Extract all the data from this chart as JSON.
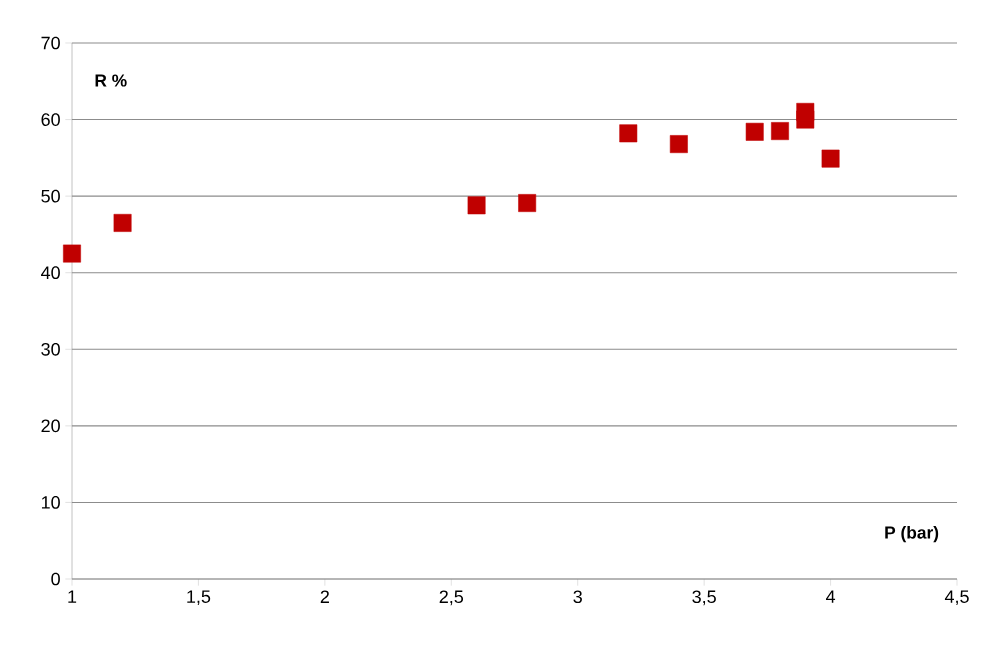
{
  "chart_data": {
    "type": "scatter",
    "xlabel": "P (bar)",
    "ylabel": "R %",
    "x": [
      1,
      1.2,
      2.6,
      2.8,
      3.2,
      3.4,
      3.7,
      3.8,
      3.9,
      3.9,
      4.0
    ],
    "values": [
      42.5,
      46.5,
      48.8,
      49.1,
      58.2,
      56.8,
      58.4,
      58.5,
      60,
      61,
      54.9
    ],
    "color": "#c00000",
    "marker": "square",
    "xlim": [
      1,
      4.5
    ],
    "xticks": [
      1,
      {
        "value": 1.5,
        "label": "1,5"
      },
      2,
      {
        "value": 2.5,
        "label": "2,5"
      },
      3,
      {
        "value": 3.5,
        "label": "3,5"
      },
      4,
      {
        "value": 4.5,
        "label": "4,5"
      }
    ],
    "ylim": [
      0,
      70
    ],
    "yticks": [
      0,
      10,
      20,
      30,
      40,
      50,
      60,
      70
    ],
    "grid": "y"
  }
}
